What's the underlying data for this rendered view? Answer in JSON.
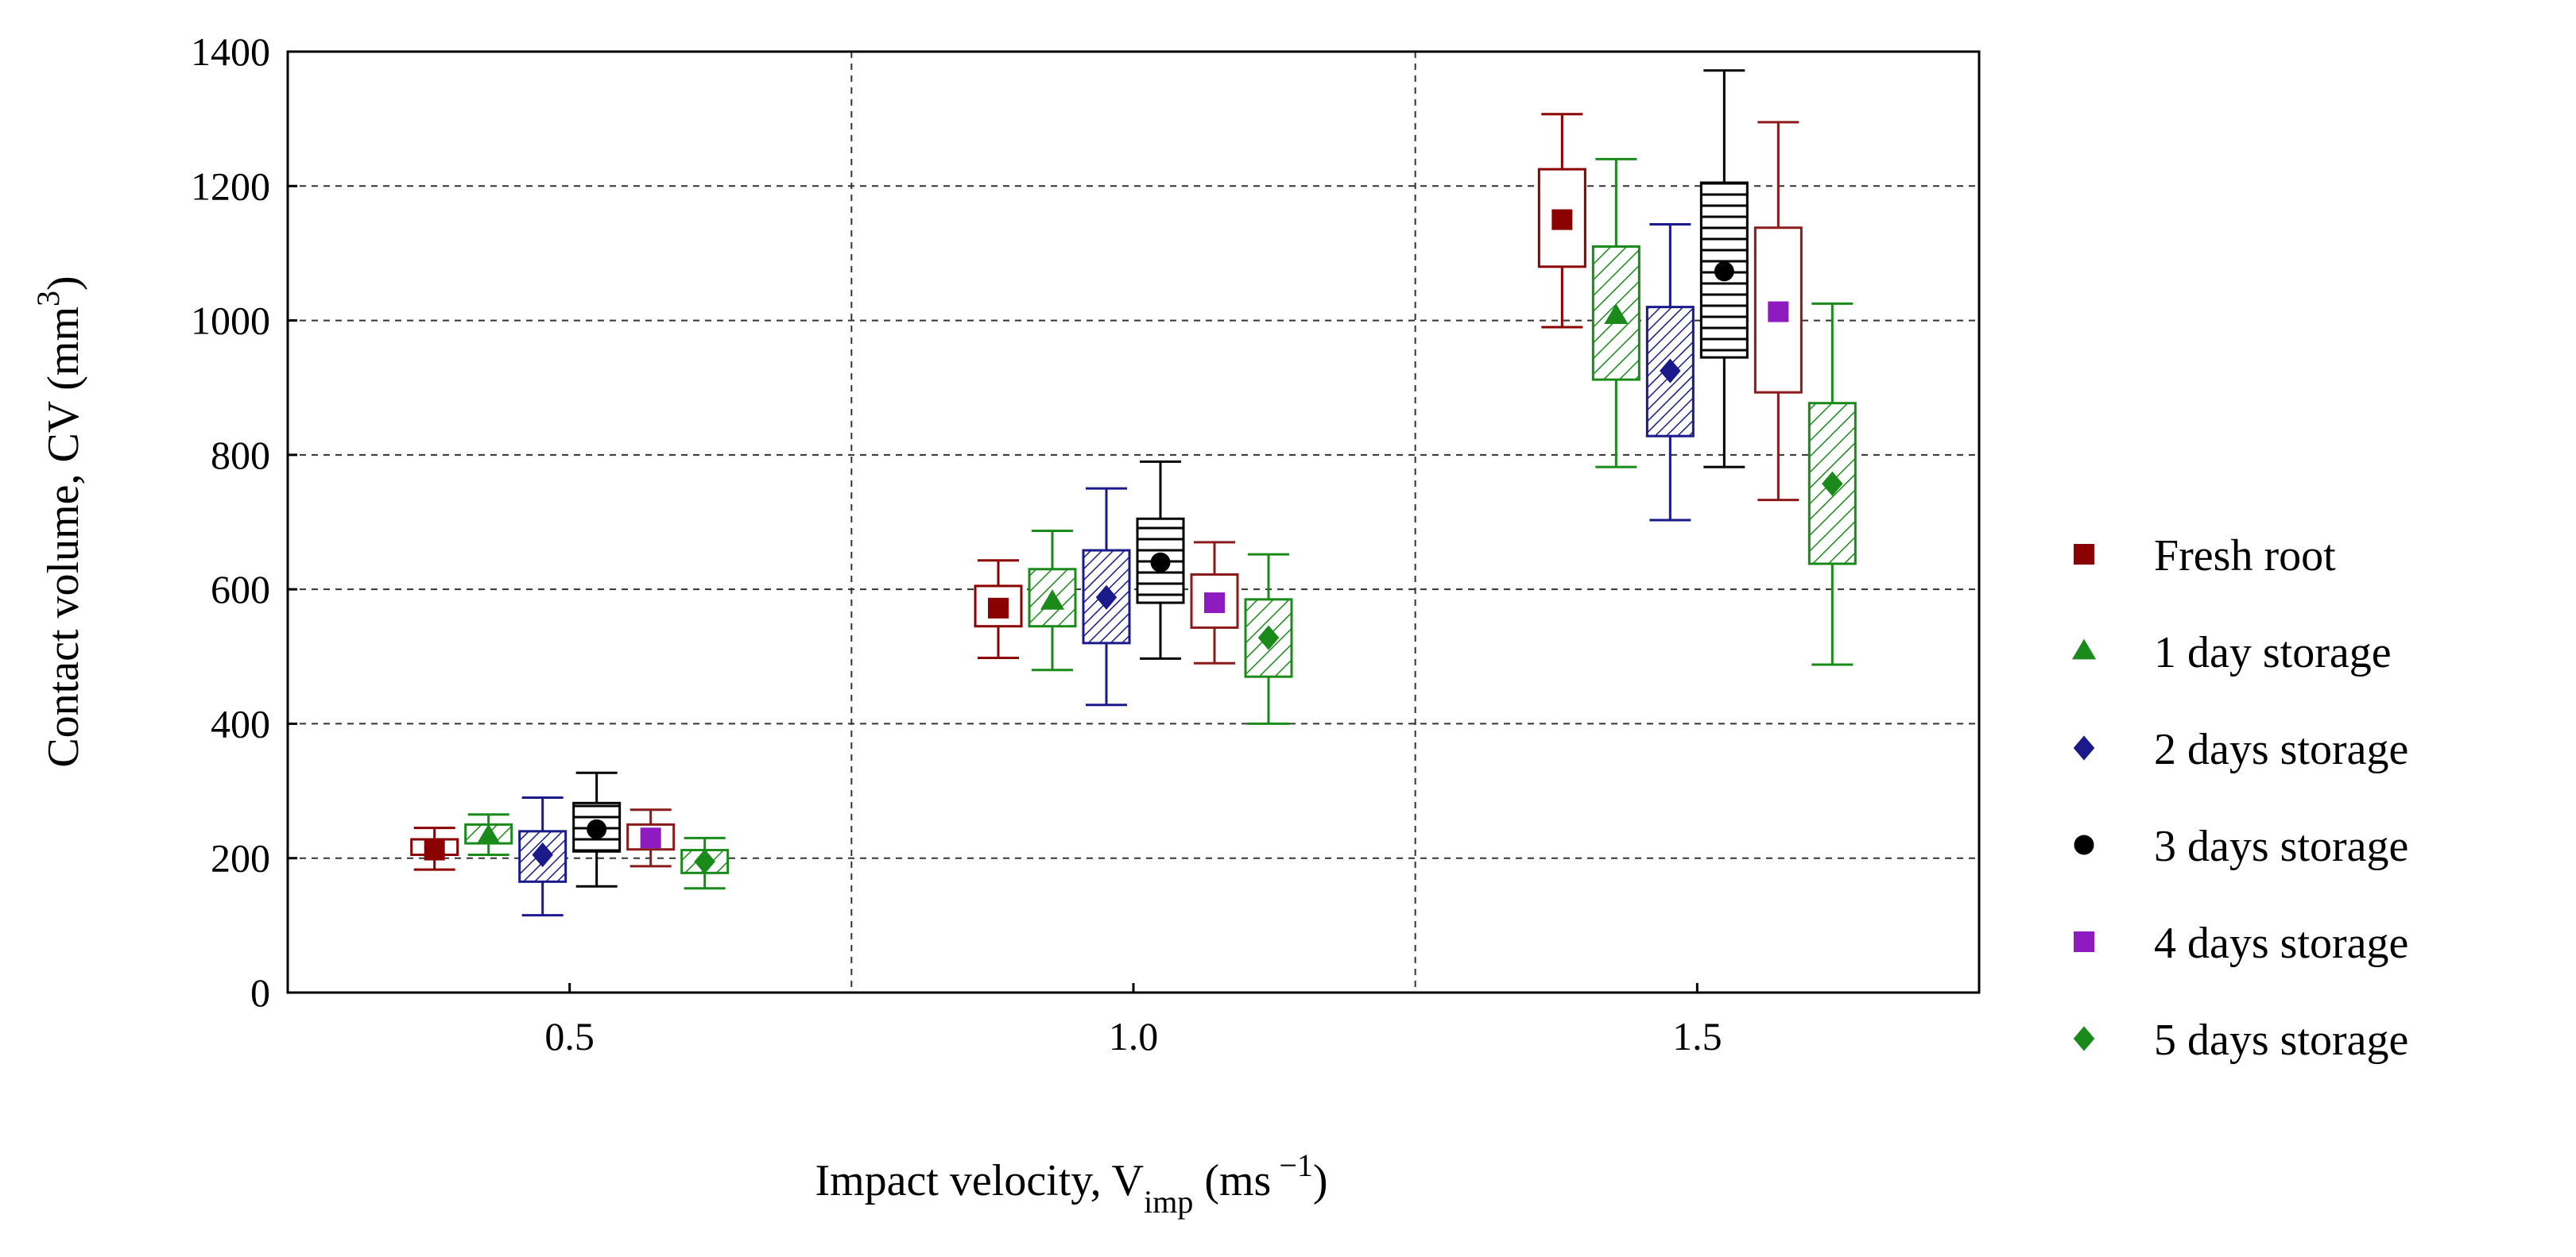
{
  "chart_data": {
    "type": "box",
    "xlabel": {
      "main": "Impact velocity, V",
      "sub": "imp",
      "unit_open": " (ms",
      "unit_sup": " −1",
      "unit_close": ")"
    },
    "ylabel": {
      "main": "Contact volume, CV (mm",
      "sup": "3",
      "close": ")"
    },
    "ylim": [
      0,
      1400
    ],
    "yticks": [
      "0",
      "200",
      "400",
      "600",
      "800",
      "1000",
      "1200",
      "1400"
    ],
    "categories": [
      "0.5",
      "1.0",
      "1.5"
    ],
    "grid": true,
    "legend_position": "right",
    "series": [
      {
        "name": "Fresh root",
        "color": "#8b0000",
        "marker": "square",
        "pattern": "none",
        "data": [
          {
            "min": 183,
            "q1": 205,
            "mean": 212,
            "q3": 228,
            "max": 245
          },
          {
            "min": 498,
            "q1": 545,
            "mean": 572,
            "q3": 605,
            "max": 643
          },
          {
            "min": 990,
            "q1": 1080,
            "mean": 1150,
            "q3": 1225,
            "max": 1307
          }
        ]
      },
      {
        "name": "1 day storage",
        "color": "#1a8a1a",
        "marker": "triangle",
        "pattern": "diag",
        "data": [
          {
            "min": 205,
            "q1": 222,
            "mean": 233,
            "q3": 250,
            "max": 265
          },
          {
            "min": 480,
            "q1": 545,
            "mean": 582,
            "q3": 630,
            "max": 687
          },
          {
            "min": 782,
            "q1": 912,
            "mean": 1007,
            "q3": 1110,
            "max": 1240
          }
        ]
      },
      {
        "name": "2 days storage",
        "color": "#1a1a8b",
        "marker": "diamond",
        "pattern": "diagdense",
        "data": [
          {
            "min": 115,
            "q1": 165,
            "mean": 205,
            "q3": 240,
            "max": 290
          },
          {
            "min": 428,
            "q1": 520,
            "mean": 588,
            "q3": 658,
            "max": 750
          },
          {
            "min": 703,
            "q1": 828,
            "mean": 925,
            "q3": 1020,
            "max": 1143
          }
        ]
      },
      {
        "name": "3 days storage",
        "color": "#000000",
        "marker": "circle",
        "pattern": "horiz",
        "data": [
          {
            "min": 158,
            "q1": 210,
            "mean": 243,
            "q3": 282,
            "max": 327
          },
          {
            "min": 497,
            "q1": 580,
            "mean": 640,
            "q3": 705,
            "max": 790
          },
          {
            "min": 782,
            "q1": 945,
            "mean": 1073,
            "q3": 1205,
            "max": 1372
          }
        ]
      },
      {
        "name": "4 days storage",
        "color": "#8b1a1a",
        "marker_color": "#8e1bbf",
        "marker": "square",
        "pattern": "none",
        "data": [
          {
            "min": 188,
            "q1": 213,
            "mean": 230,
            "q3": 250,
            "max": 272
          },
          {
            "min": 490,
            "q1": 543,
            "mean": 580,
            "q3": 622,
            "max": 670
          },
          {
            "min": 733,
            "q1": 893,
            "mean": 1013,
            "q3": 1138,
            "max": 1295
          }
        ]
      },
      {
        "name": "5 days storage",
        "color": "#1a8a1a",
        "marker": "diamond",
        "pattern": "diag",
        "data": [
          {
            "min": 155,
            "q1": 178,
            "mean": 195,
            "q3": 212,
            "max": 230
          },
          {
            "min": 400,
            "q1": 470,
            "mean": 528,
            "q3": 585,
            "max": 652
          },
          {
            "min": 488,
            "q1": 638,
            "mean": 757,
            "q3": 877,
            "max": 1025
          }
        ]
      }
    ]
  }
}
